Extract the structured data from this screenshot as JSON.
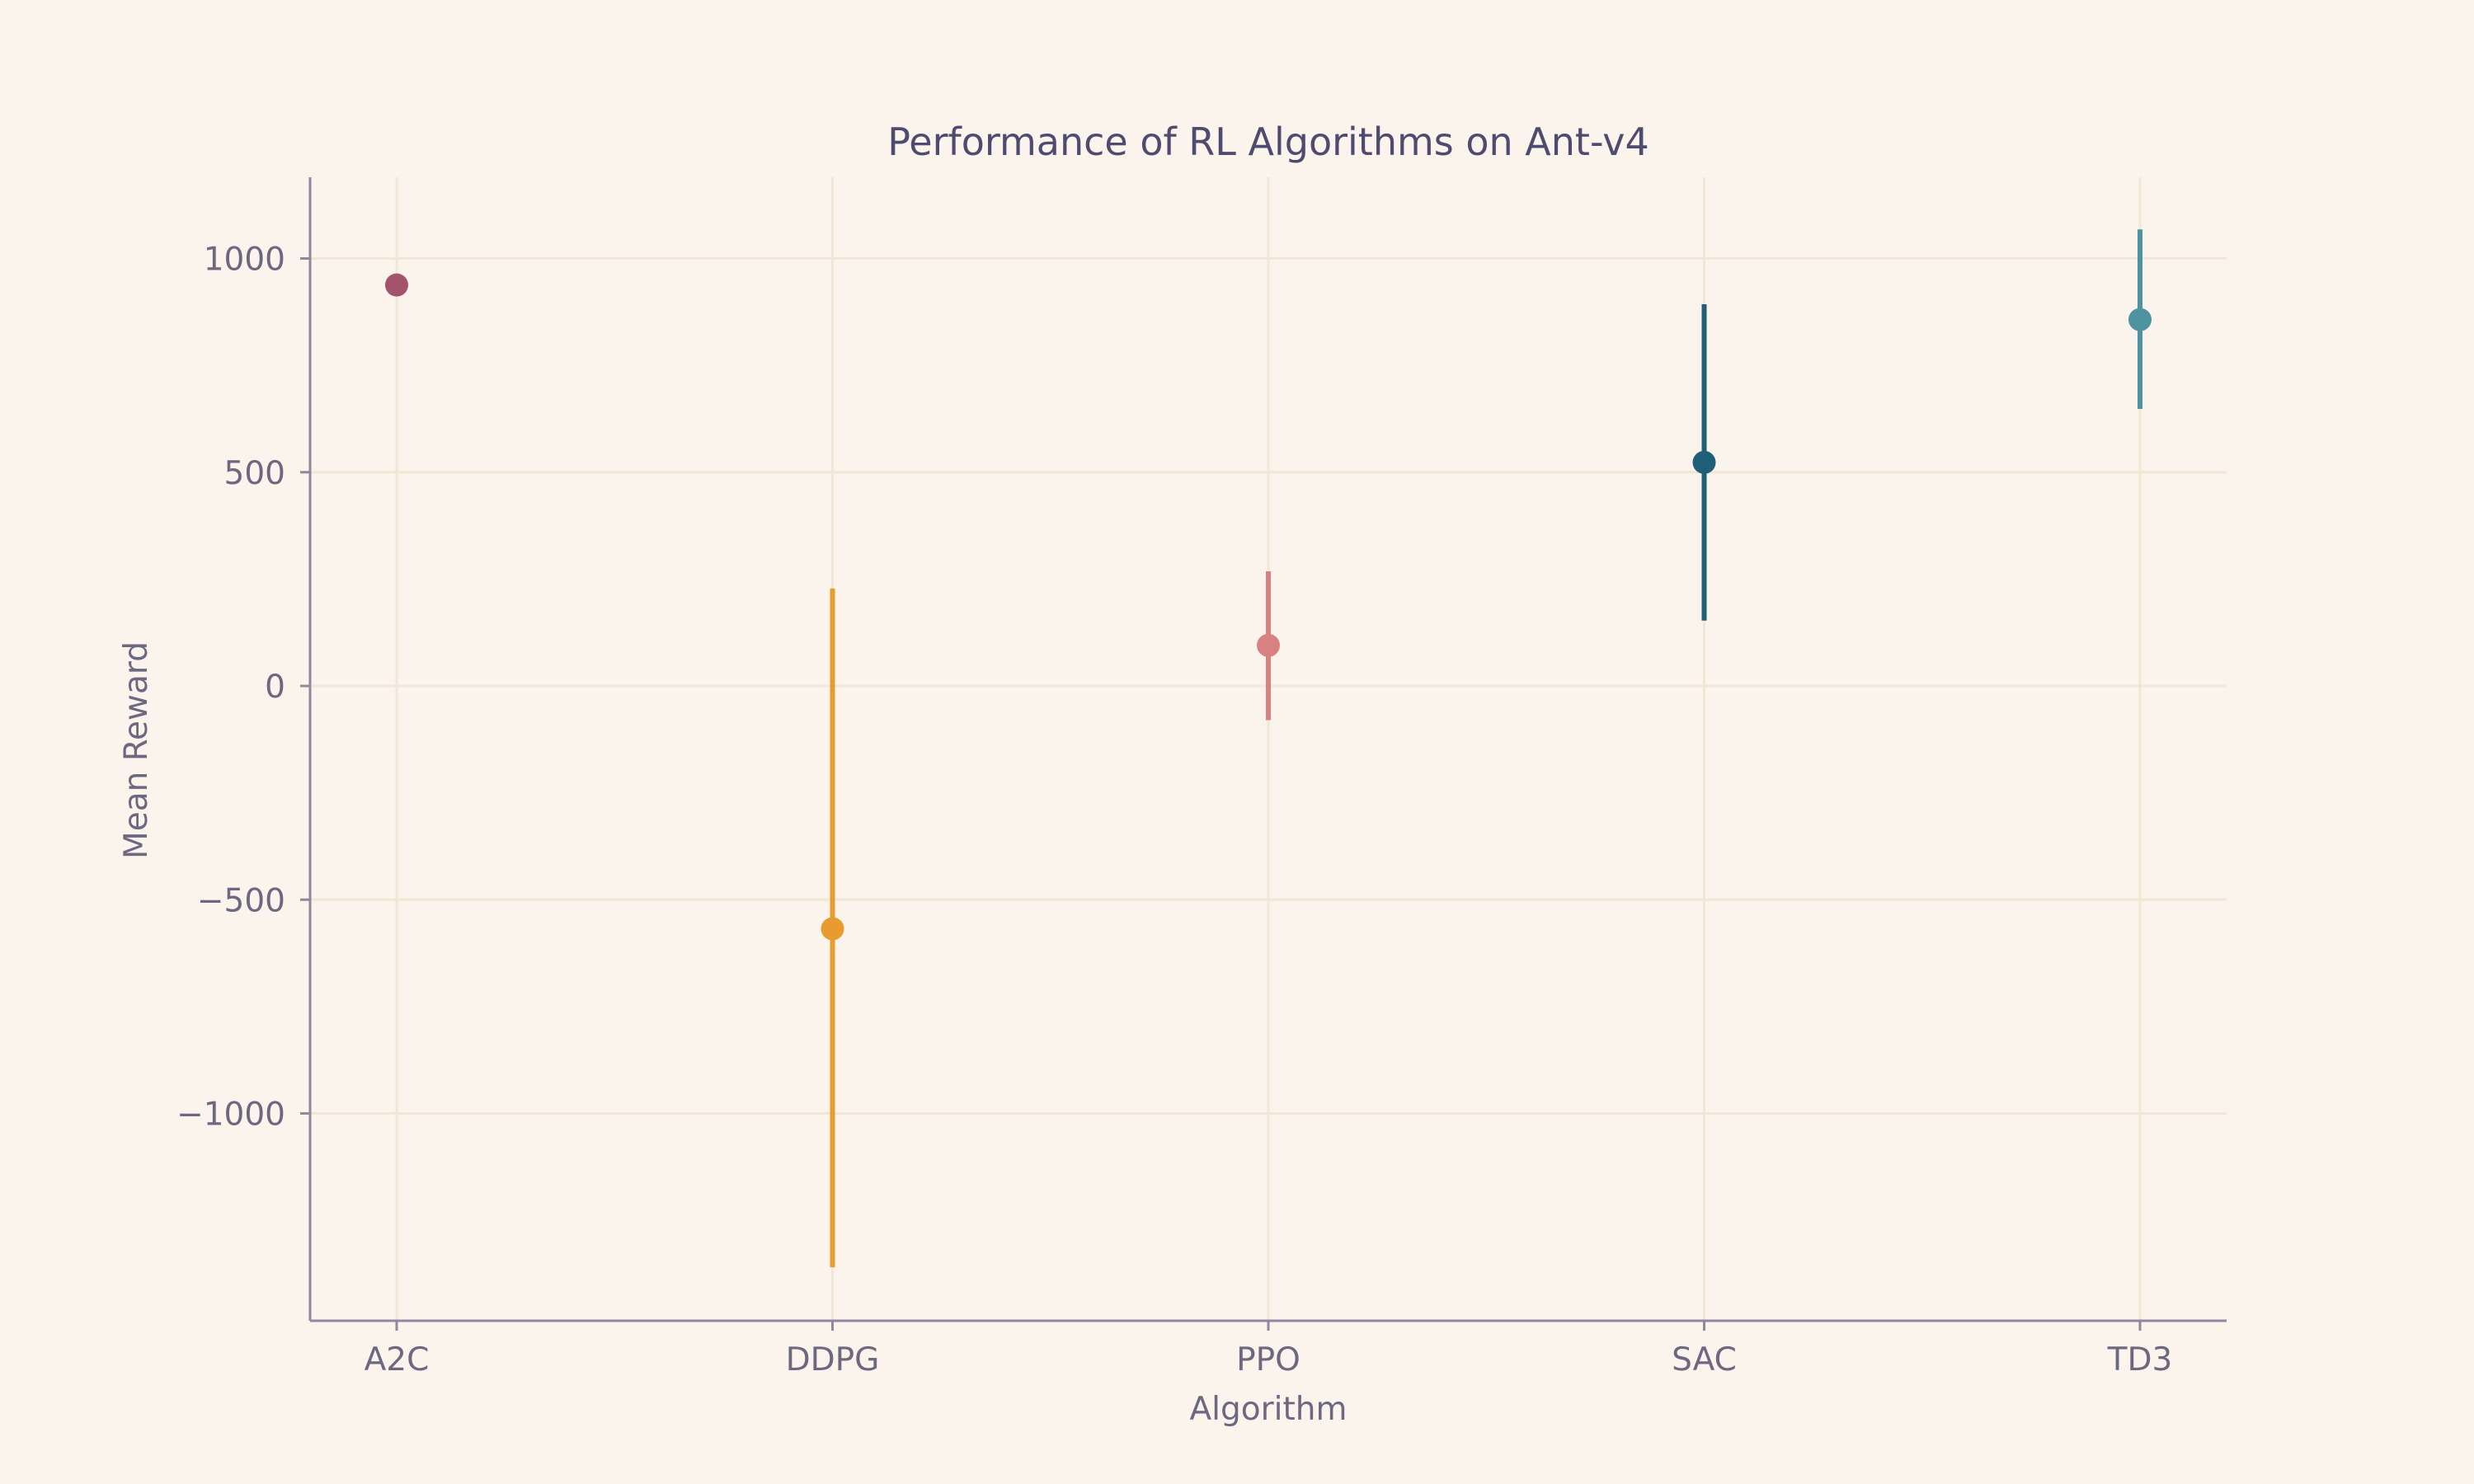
{
  "chart_data": {
    "type": "scatter",
    "title": "Performance of RL Algorithms on Ant-v4",
    "xlabel": "Algorithm",
    "ylabel": "Mean Reward",
    "categories": [
      "A2C",
      "DDPG",
      "PPO",
      "SAC",
      "TD3"
    ],
    "points": [
      {
        "category": "A2C",
        "mean": 938,
        "lower": 938,
        "upper": 938,
        "color": "#a4536d"
      },
      {
        "category": "DDPG",
        "mean": -568,
        "lower": -1360,
        "upper": 228,
        "color": "#e89b2f"
      },
      {
        "category": "PPO",
        "mean": 95,
        "lower": -80,
        "upper": 268,
        "color": "#d98080"
      },
      {
        "category": "SAC",
        "mean": 523,
        "lower": 153,
        "upper": 893,
        "color": "#1f5f78"
      },
      {
        "category": "TD3",
        "mean": 857,
        "lower": 648,
        "upper": 1068,
        "color": "#4e93a0"
      }
    ],
    "yticks": [
      1000,
      500,
      0,
      -500,
      -1000
    ],
    "ytick_labels": [
      "1000",
      "500",
      "0",
      "−500",
      "−1000"
    ],
    "ylim": [
      -1485,
      1190
    ],
    "grid": true
  }
}
